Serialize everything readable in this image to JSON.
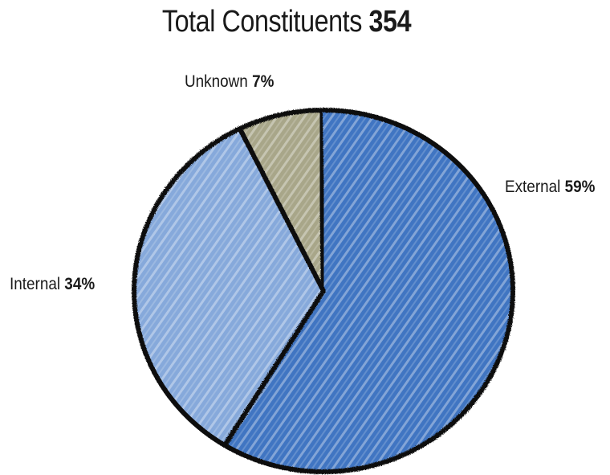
{
  "chart_data": {
    "type": "pie",
    "title": {
      "prefix": "Total Constituents",
      "total": "354"
    },
    "slices": [
      {
        "label": "External",
        "percent_text": "59%",
        "value": 59,
        "color": "#3f74c2"
      },
      {
        "label": "Internal",
        "percent_text": "34%",
        "value": 34,
        "color": "#86a9db"
      },
      {
        "label": "Unknown",
        "percent_text": "7%",
        "value": 7,
        "color": "#a8a689"
      }
    ]
  }
}
